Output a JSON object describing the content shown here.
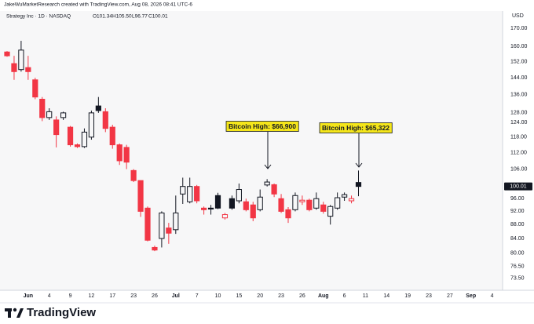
{
  "chart_data": {
    "type": "candlestick",
    "attribution": "JakeWuMarketResearch created with TradingView.com, Aug 08, 2026 08:41 UTC-6",
    "title": "Strategy Inc · 1D · NASDAQ",
    "ohlc_legend": [
      "O101.34",
      "H105.50",
      "L96.77",
      "C100.01"
    ],
    "currency": "USD",
    "footer": "TradingView",
    "categories": [
      null,
      null,
      null,
      "Jun",
      null,
      null,
      "4",
      null,
      null,
      "9",
      null,
      null,
      "12",
      null,
      null,
      "17",
      null,
      null,
      "23",
      null,
      null,
      "26",
      null,
      null,
      "Jul",
      null,
      null,
      "7",
      null,
      null,
      "10",
      null,
      null,
      "15",
      null,
      null,
      "20",
      null,
      null,
      "23",
      null,
      null,
      "26",
      null,
      null,
      "Aug",
      null,
      null,
      "6",
      null,
      null,
      "11",
      null,
      null,
      "14",
      null,
      null,
      "19",
      null,
      null,
      "23",
      null,
      null,
      "27",
      null,
      null,
      "Sep",
      null,
      null,
      "4"
    ],
    "month_labels": [
      "Jun",
      "Jul",
      "Aug",
      "Sep"
    ],
    "open": [
      157,
      151,
      148,
      149,
      143,
      134,
      126,
      125,
      126,
      122,
      115,
      114.3,
      118,
      131,
      128.5,
      122,
      115,
      114,
      105.5,
      102,
      93,
      81.5,
      84,
      87,
      86.5,
      97.5,
      95,
      100,
      93,
      93,
      97,
      90,
      96,
      95.3,
      95,
      94,
      92.5,
      100.5,
      100.6,
      96,
      92.5,
      92.5,
      95,
      95.5,
      93,
      94,
      90.5,
      93,
      96.5,
      95.3,
      101.34,
      null,
      null,
      null,
      null,
      null,
      null,
      null,
      null,
      null,
      null,
      null,
      null,
      null,
      null,
      null,
      null,
      null,
      null,
      null
    ],
    "high": [
      157.5,
      155,
      163,
      155,
      144,
      135,
      130,
      126.5,
      128.5,
      122.5,
      115.5,
      121.5,
      129,
      135,
      130,
      123,
      115.5,
      115,
      106,
      102,
      93.5,
      82,
      92,
      88.5,
      97,
      103,
      103,
      100.5,
      93.5,
      94,
      97.9,
      91.5,
      97,
      101,
      96,
      95,
      99,
      102.5,
      101,
      97.5,
      93.3,
      98,
      97,
      96,
      98,
      95,
      94,
      98,
      98,
      97,
      105.5,
      null,
      null,
      null,
      null,
      null,
      null,
      null,
      null,
      null,
      null,
      null,
      null,
      null,
      null,
      null,
      null,
      null,
      null,
      null
    ],
    "low": [
      154.5,
      143,
      147,
      143,
      134,
      124.5,
      125,
      114,
      125,
      114.3,
      113.8,
      113.8,
      117,
      128,
      120,
      113.5,
      107.5,
      106,
      101.5,
      90.3,
      83.2,
      80.5,
      81.5,
      82.5,
      85.3,
      94.3,
      94.5,
      94.5,
      91,
      91,
      92.7,
      89.5,
      92.5,
      94.5,
      92,
      89,
      92,
      100,
      96.5,
      91.5,
      88.5,
      92,
      94,
      92,
      92.5,
      91.3,
      88,
      92.5,
      95.3,
      94.5,
      96.77,
      null,
      null,
      null,
      null,
      null,
      null,
      null,
      null,
      null,
      null,
      null,
      null,
      null,
      null,
      null,
      null,
      null,
      null,
      null
    ],
    "close": [
      155,
      147,
      158,
      147,
      135,
      126,
      128.5,
      119,
      128,
      115,
      114.3,
      120,
      128,
      129,
      121.5,
      115,
      109,
      108.5,
      102,
      92,
      83.5,
      80.8,
      91.5,
      85.5,
      91.5,
      100,
      100,
      95.3,
      92.5,
      92.7,
      93,
      91,
      93,
      99,
      92.5,
      90,
      96.5,
      101.5,
      97.5,
      92,
      90,
      97,
      95.5,
      92.5,
      96,
      92,
      93.5,
      96.3,
      97.3,
      96,
      100.01,
      null,
      null,
      null,
      null,
      null,
      null,
      null,
      null,
      null,
      null,
      null,
      null,
      null,
      null,
      null,
      null,
      null,
      null,
      null
    ],
    "up_color": "#131722",
    "down_color": "#f23645",
    "background": "#f7f7f8",
    "log_scale": true,
    "grid": false,
    "ylim": [
      70.6,
      176.4
    ],
    "yticks": [
      {
        "value": 170,
        "label": "170.00"
      },
      {
        "value": 160,
        "label": "160.00"
      },
      {
        "value": 152,
        "label": "152.00"
      },
      {
        "value": 144,
        "label": "144.00"
      },
      {
        "value": 136,
        "label": "136.00"
      },
      {
        "value": 128,
        "label": "128.00"
      },
      {
        "value": 124,
        "label": "124.00"
      },
      {
        "value": 118,
        "label": "118.00"
      },
      {
        "value": 112,
        "label": "112.00"
      },
      {
        "value": 106,
        "label": "106.00"
      },
      {
        "value": 100,
        "label": "100.00"
      },
      {
        "value": 96,
        "label": "96.00"
      },
      {
        "value": 92,
        "label": "92.00"
      },
      {
        "value": 88,
        "label": "88.00"
      },
      {
        "value": 84,
        "label": "84.00"
      },
      {
        "value": 80,
        "label": "80.00"
      },
      {
        "value": 76.5,
        "label": "76.50"
      },
      {
        "value": 73.5,
        "label": "73.50"
      }
    ],
    "annotations": [
      {
        "text": "Bitcoin High: $66,900",
        "color": "#f5e61a"
      },
      {
        "text": "Bitcoin High: $65,322",
        "color": "#f5e61a"
      }
    ]
  }
}
